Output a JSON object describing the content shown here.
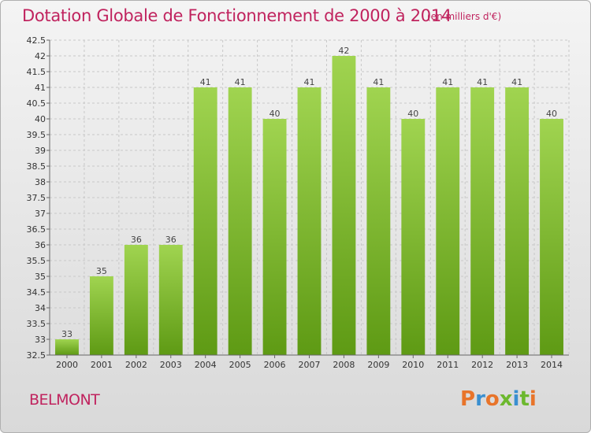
{
  "header": {
    "title": "Dotation Globale de Fonctionnement de 2000 à 2014",
    "subtitle": "(en milliers d'€)"
  },
  "footer": {
    "commune": "BELMONT",
    "logo_text": "Proxiti"
  },
  "colors": {
    "title": "#c0235e",
    "bar_light": "#a0d450",
    "bar_dark": "#5e9a14",
    "logo_letters": [
      "#e8742a",
      "#3a8fd0",
      "#e8742a",
      "#6cb82e",
      "#3a8fd0",
      "#6cb82e",
      "#e8742a"
    ]
  },
  "chart_data": {
    "type": "bar",
    "title": "Dotation Globale de Fonctionnement de 2000 à 2014",
    "subtitle": "(en milliers d'€)",
    "xlabel": "",
    "ylabel": "",
    "categories": [
      "2000",
      "2001",
      "2002",
      "2003",
      "2004",
      "2005",
      "2006",
      "2007",
      "2008",
      "2009",
      "2010",
      "2011",
      "2012",
      "2013",
      "2014"
    ],
    "values": [
      33,
      35,
      36,
      36,
      41,
      41,
      40,
      41,
      42,
      41,
      40,
      41,
      41,
      41,
      40
    ],
    "data_labels": [
      "33",
      "35",
      "36",
      "36",
      "41",
      "41",
      "40",
      "41",
      "42",
      "41",
      "40",
      "41",
      "41",
      "41",
      "40"
    ],
    "ylim": [
      32.5,
      42.5
    ],
    "yticks": [
      "32.5",
      "33",
      "33.5",
      "34",
      "34.5",
      "35",
      "35.5",
      "36",
      "36.5",
      "37",
      "37.5",
      "38",
      "38.5",
      "39",
      "39.5",
      "40",
      "40.5",
      "41",
      "41.5",
      "42",
      "42.5"
    ],
    "grid": true,
    "legend": "none"
  }
}
